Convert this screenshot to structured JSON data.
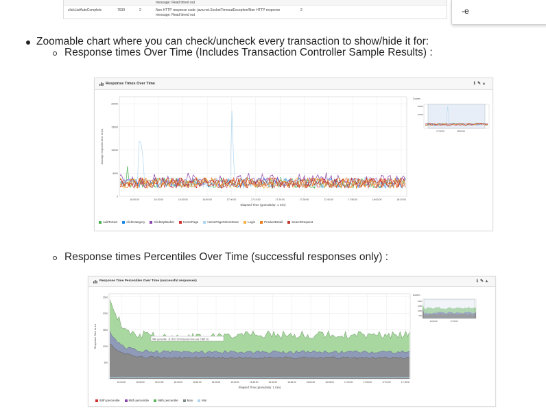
{
  "top_table": {
    "row1_message": "message: Read timed out",
    "row2_label": "clickListAutoComplete",
    "row2_count": "7630",
    "row2_errors": "2",
    "row2_message": "Non HTTP response code: java.net.SocketTimeoutException/Non HTTP response",
    "row2_message2": "message: Read timed out",
    "row2_count2": "2"
  },
  "side_box": {
    "text": "-e"
  },
  "bullets": {
    "main": "Zoomable chart where you can check/uncheck every transaction to show/hide it for:",
    "sub1": "Response times Over Time (Includes Transaction Controller Sample Results) :",
    "sub2": "Response times Percentiles Over Time (successful responses only) :"
  },
  "chart1": {
    "title": "Response Times Over Time",
    "zoom_label": "Zoom :",
    "ylabel": "Average response time in ms",
    "xlabel": "Elapsed Time (granularity: 1 min)",
    "yticks": [
      "20000",
      "15000",
      "10000",
      "5000",
      "0"
    ],
    "xticks": [
      "16:00:00",
      "16:10:00",
      "16:40:00",
      "16:50:00",
      "17:00:00",
      "17:10:00",
      "17:20:00",
      "17:30:00",
      "17:40:00",
      "17:50:00",
      "18:00:00",
      "18:10:00"
    ],
    "zoom_yticks": [
      "20000",
      "10000"
    ],
    "zoom_xticks": [
      "17:00:00",
      "18:00:00"
    ],
    "legend": [
      {
        "name": "AddToCart",
        "color": "#4caf50"
      },
      {
        "name": "clickCategory",
        "color": "#1e88e5"
      },
      {
        "name": "ClickMyBasket",
        "color": "#8e44ad"
      },
      {
        "name": "HomePage",
        "color": "#d32f2f"
      },
      {
        "name": "HomePageSelectStore",
        "color": "#aed6f1"
      },
      {
        "name": "Login",
        "color": "#f5b041"
      },
      {
        "name": "ProductDetail",
        "color": "#e67e22"
      },
      {
        "name": "SearchRequest",
        "color": "#c0392b"
      }
    ]
  },
  "chart2": {
    "title": "Response Time Percentiles Over Time (successful responses)",
    "zoom_label": "Zoom :",
    "ylabel": "Response Time in ms",
    "xlabel": "Elapsed Time (granularity: 1 min)",
    "yticks": [
      "2500",
      "2000",
      "1500",
      "1000",
      "500"
    ],
    "xticks": [
      "16:00:00",
      "16:05:00",
      "16:10:00",
      "16:15:00",
      "16:20:00",
      "16:25:00",
      "16:30:00",
      "16:35:00",
      "16:40:00",
      "16:45:00",
      "16:50:00",
      "16:55:00",
      "17:00:00",
      "17:05:00",
      "17:10:00",
      "17:15:00"
    ],
    "zoom_yticks": [
      "2500",
      "1500",
      "1000",
      "500"
    ],
    "zoom_xticks": [
      "16:00:00",
      "17:00:00"
    ],
    "tooltip": "90th percentile : at 16:01:00 Response time was: 1985 ms",
    "legend": [
      {
        "name": "90th percentile",
        "color": "#d32f2f"
      },
      {
        "name": "95th percentile",
        "color": "#8e44ad"
      },
      {
        "name": "99th percentile",
        "color": "#5cb85c"
      },
      {
        "name": "Max",
        "color": "#7f8c8d"
      },
      {
        "name": "Min",
        "color": "#aed6f1"
      }
    ]
  }
}
